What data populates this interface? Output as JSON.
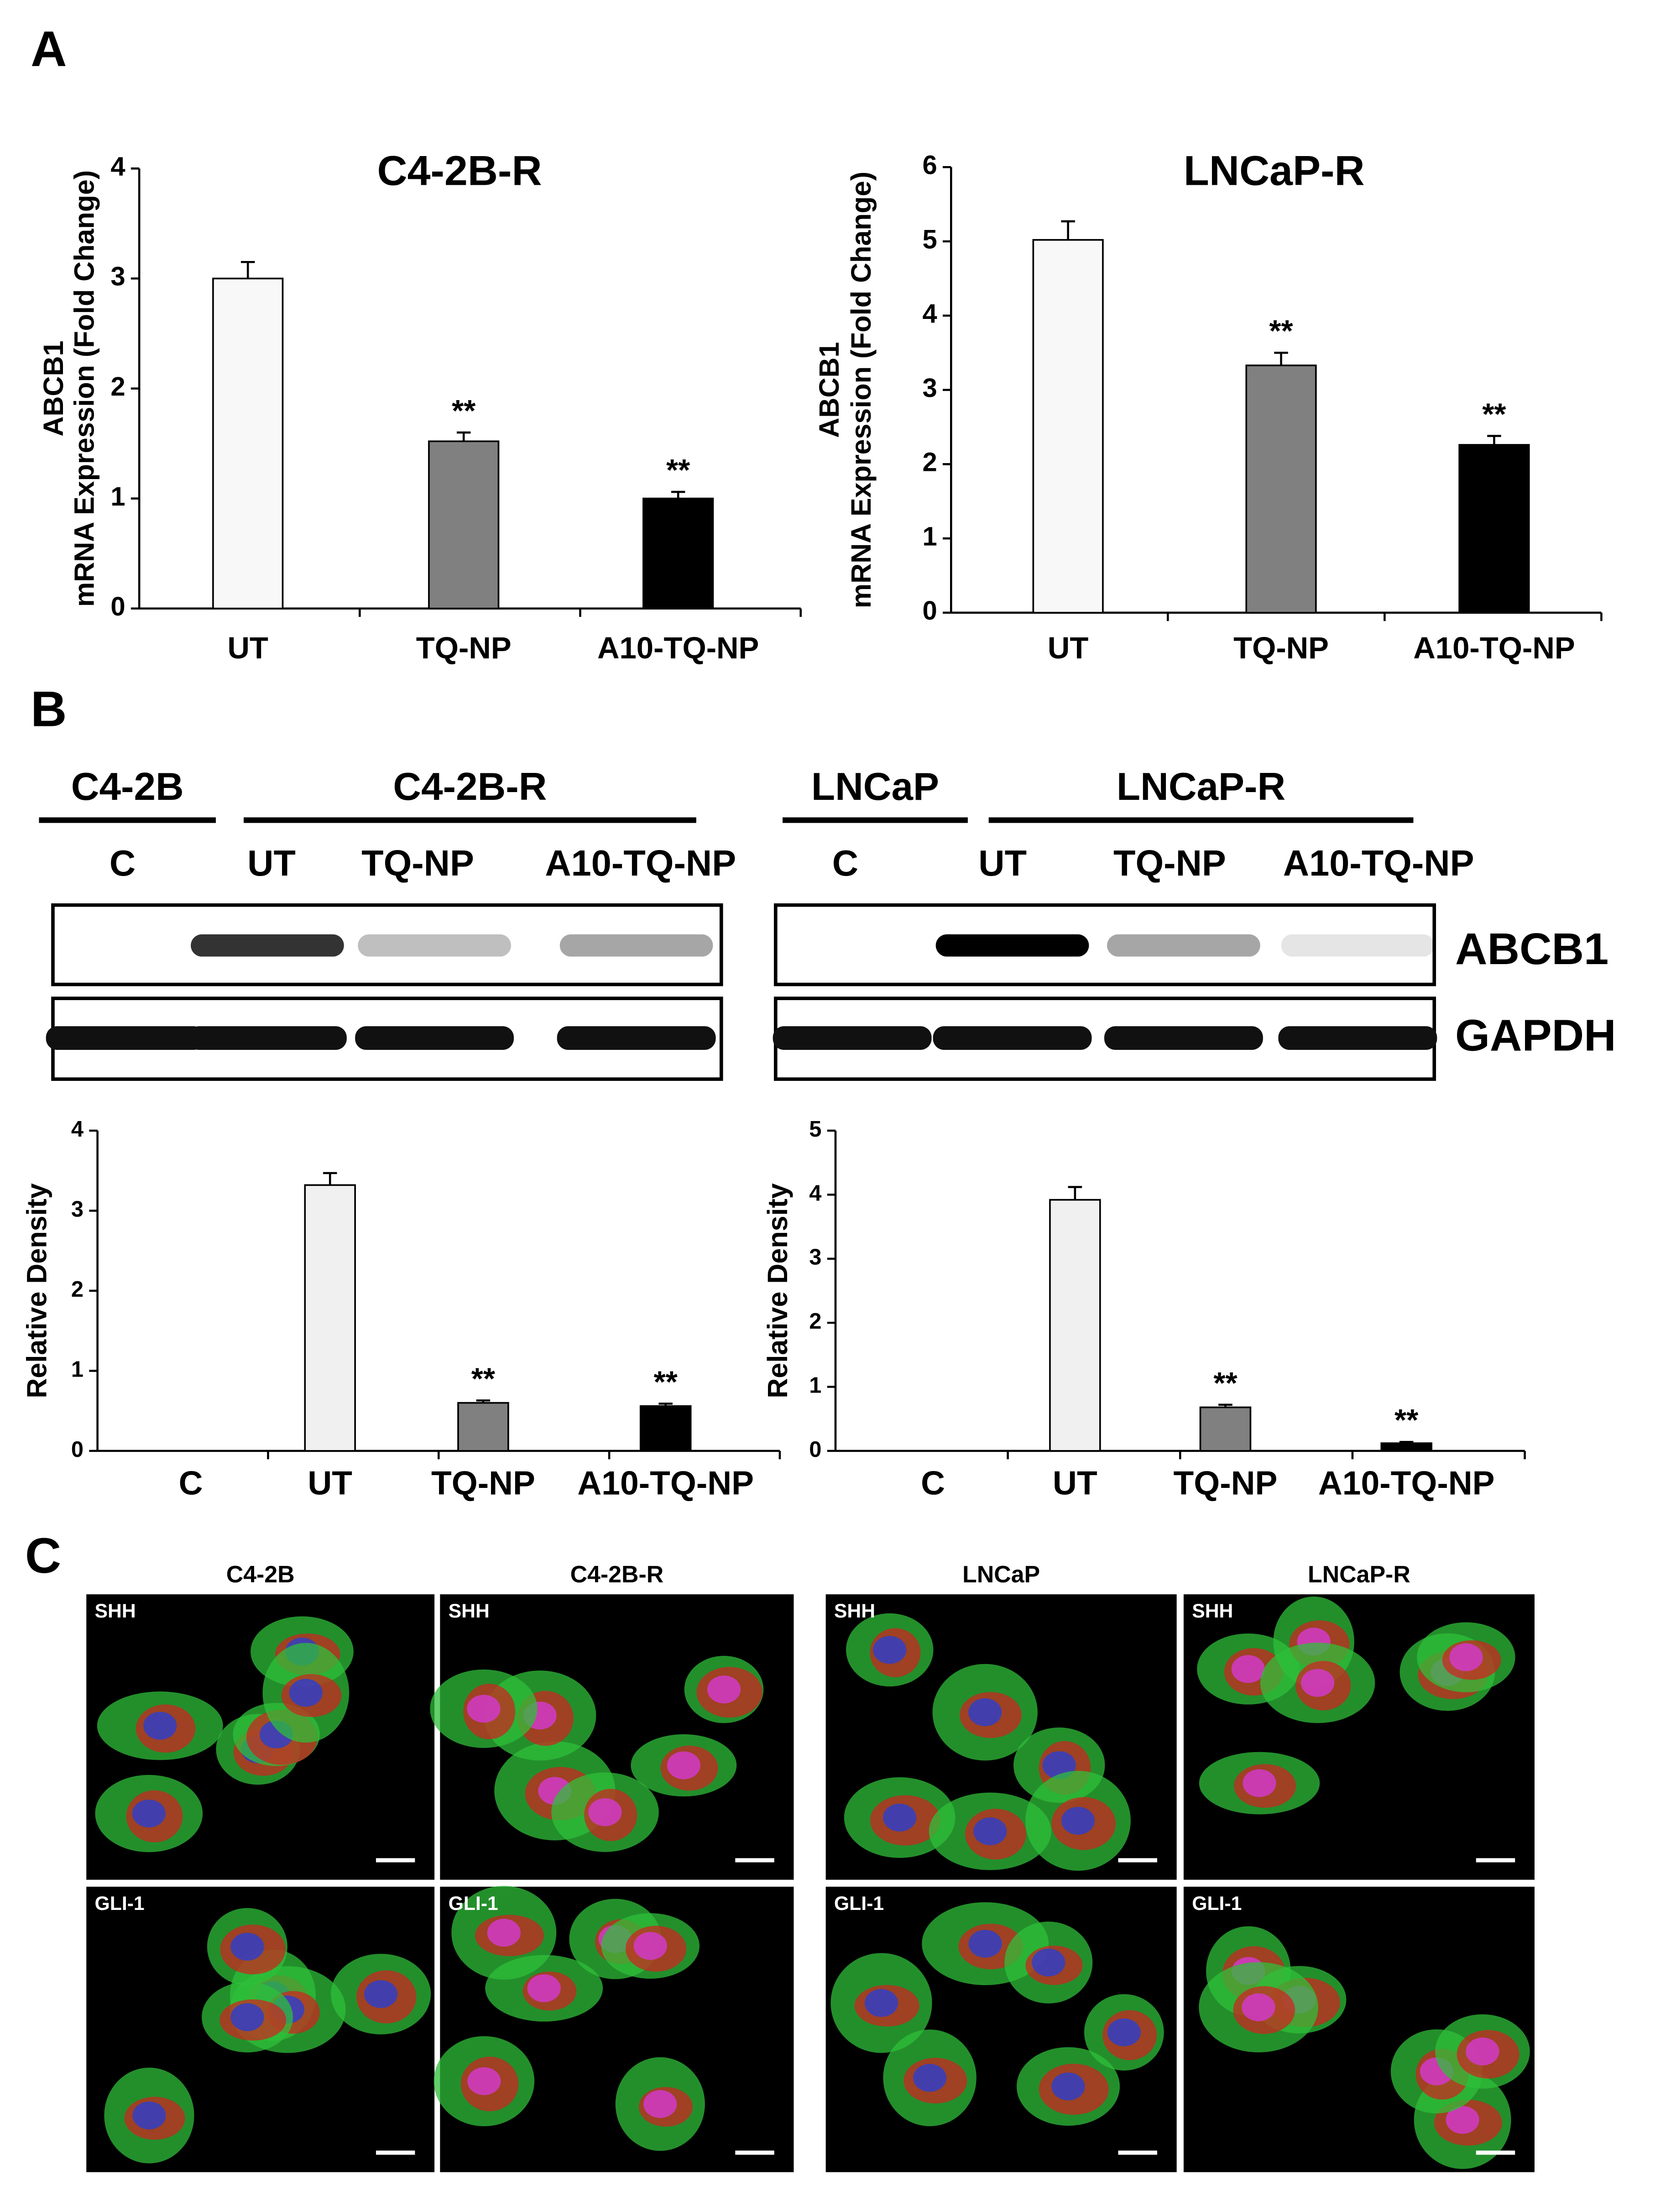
{
  "panel_labels": [
    "A",
    "B",
    "C"
  ],
  "chart_data": [
    {
      "type": "bar",
      "title": "C4-2B-R",
      "ylabel": [
        "ABCB1",
        "mRNA Expression (Fold Change)"
      ],
      "categories": [
        "UT",
        "TQ-NP",
        "A10-TQ-NP"
      ],
      "values": [
        3.0,
        1.52,
        1.0
      ],
      "errors": [
        0.15,
        0.08,
        0.06
      ],
      "annotations": [
        null,
        "**",
        "**"
      ],
      "colors": [
        "#f8f8f8",
        "#808080",
        "#000000"
      ],
      "ylim": [
        0,
        4
      ],
      "yticks": [
        0,
        1,
        2,
        3,
        4
      ]
    },
    {
      "type": "bar",
      "title": "LNCaP-R",
      "ylabel": [
        "ABCB1",
        "mRNA Expression (Fold Change)"
      ],
      "categories": [
        "UT",
        "TQ-NP",
        "A10-TQ-NP"
      ],
      "values": [
        5.02,
        3.33,
        2.26
      ],
      "errors": [
        0.25,
        0.17,
        0.12
      ],
      "annotations": [
        null,
        "**",
        "**"
      ],
      "colors": [
        "#f8f8f8",
        "#808080",
        "#000000"
      ],
      "ylim": [
        0,
        6
      ],
      "yticks": [
        0,
        1,
        2,
        3,
        4,
        5,
        6
      ]
    },
    {
      "type": "bar",
      "ylabel": "Relative Density",
      "categories": [
        "C",
        "UT",
        "TQ-NP",
        "A10-TQ-NP"
      ],
      "values": [
        0,
        3.32,
        0.6,
        0.56
      ],
      "errors": [
        null,
        0.15,
        0.03,
        0.03
      ],
      "annotations": [
        null,
        null,
        "**",
        "**"
      ],
      "colors": [
        "#f0f0f0",
        "#f0f0f0",
        "#808080",
        "#000000"
      ],
      "ylim": [
        0,
        4
      ],
      "yticks": [
        0,
        1,
        2,
        3,
        4
      ]
    },
    {
      "type": "bar",
      "ylabel": "Relative Density",
      "categories": [
        "C",
        "UT",
        "TQ-NP",
        "A10-TQ-NP"
      ],
      "values": [
        0,
        3.92,
        0.68,
        0.12
      ],
      "errors": [
        null,
        0.2,
        0.04,
        0.02
      ],
      "annotations": [
        null,
        null,
        "**",
        "**"
      ],
      "colors": [
        "#f0f0f0",
        "#f0f0f0",
        "#808080",
        "#000000"
      ],
      "ylim": [
        0,
        5
      ],
      "yticks": [
        0,
        1,
        2,
        3,
        4,
        5
      ]
    }
  ],
  "blots": [
    {
      "parent": "C4-2B",
      "resistant": "C4-2B-R",
      "lanes": [
        "C",
        "UT",
        "TQ-NP",
        "A10-TQ-NP"
      ]
    },
    {
      "parent": "LNCaP",
      "resistant": "LNCaP-R",
      "lanes": [
        "C",
        "UT",
        "TQ-NP",
        "A10-TQ-NP"
      ]
    }
  ],
  "blot_rows": [
    "ABCB1",
    "GAPDH"
  ],
  "microscopy": {
    "columns": [
      "C4-2B",
      "C4-2B-R",
      "LNCaP",
      "LNCaP-R"
    ],
    "rows": [
      "SHH",
      "GLI-1"
    ]
  }
}
